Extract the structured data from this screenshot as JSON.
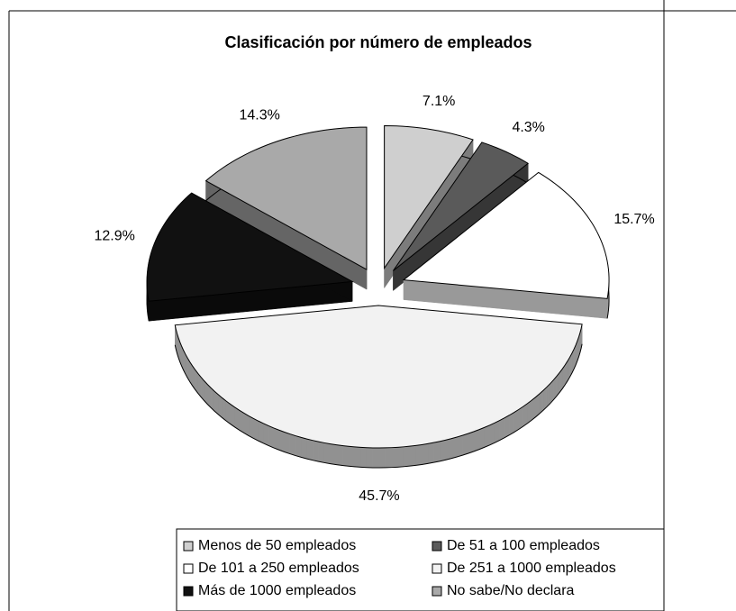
{
  "chart_data": {
    "type": "pie3d",
    "title": "Clasificación por número de empleados",
    "categories": [
      "Menos de 50 empleados",
      "De 51 a 100 empleados",
      "De 101 a 250 empleados",
      "De 251 a 1000 empleados",
      "Más de 1000 empleados",
      "No sabe/No declara"
    ],
    "values": [
      7.1,
      4.3,
      15.7,
      45.7,
      12.9,
      14.3
    ],
    "value_labels": [
      "7.1%",
      "4.3%",
      "15.7%",
      "45.7%",
      "12.9%",
      "14.3%"
    ],
    "colors": [
      "#cfcfcf",
      "#5a5a5a",
      "#ffffff",
      "#f2f2f2",
      "#111111",
      "#a9a9a9"
    ]
  }
}
